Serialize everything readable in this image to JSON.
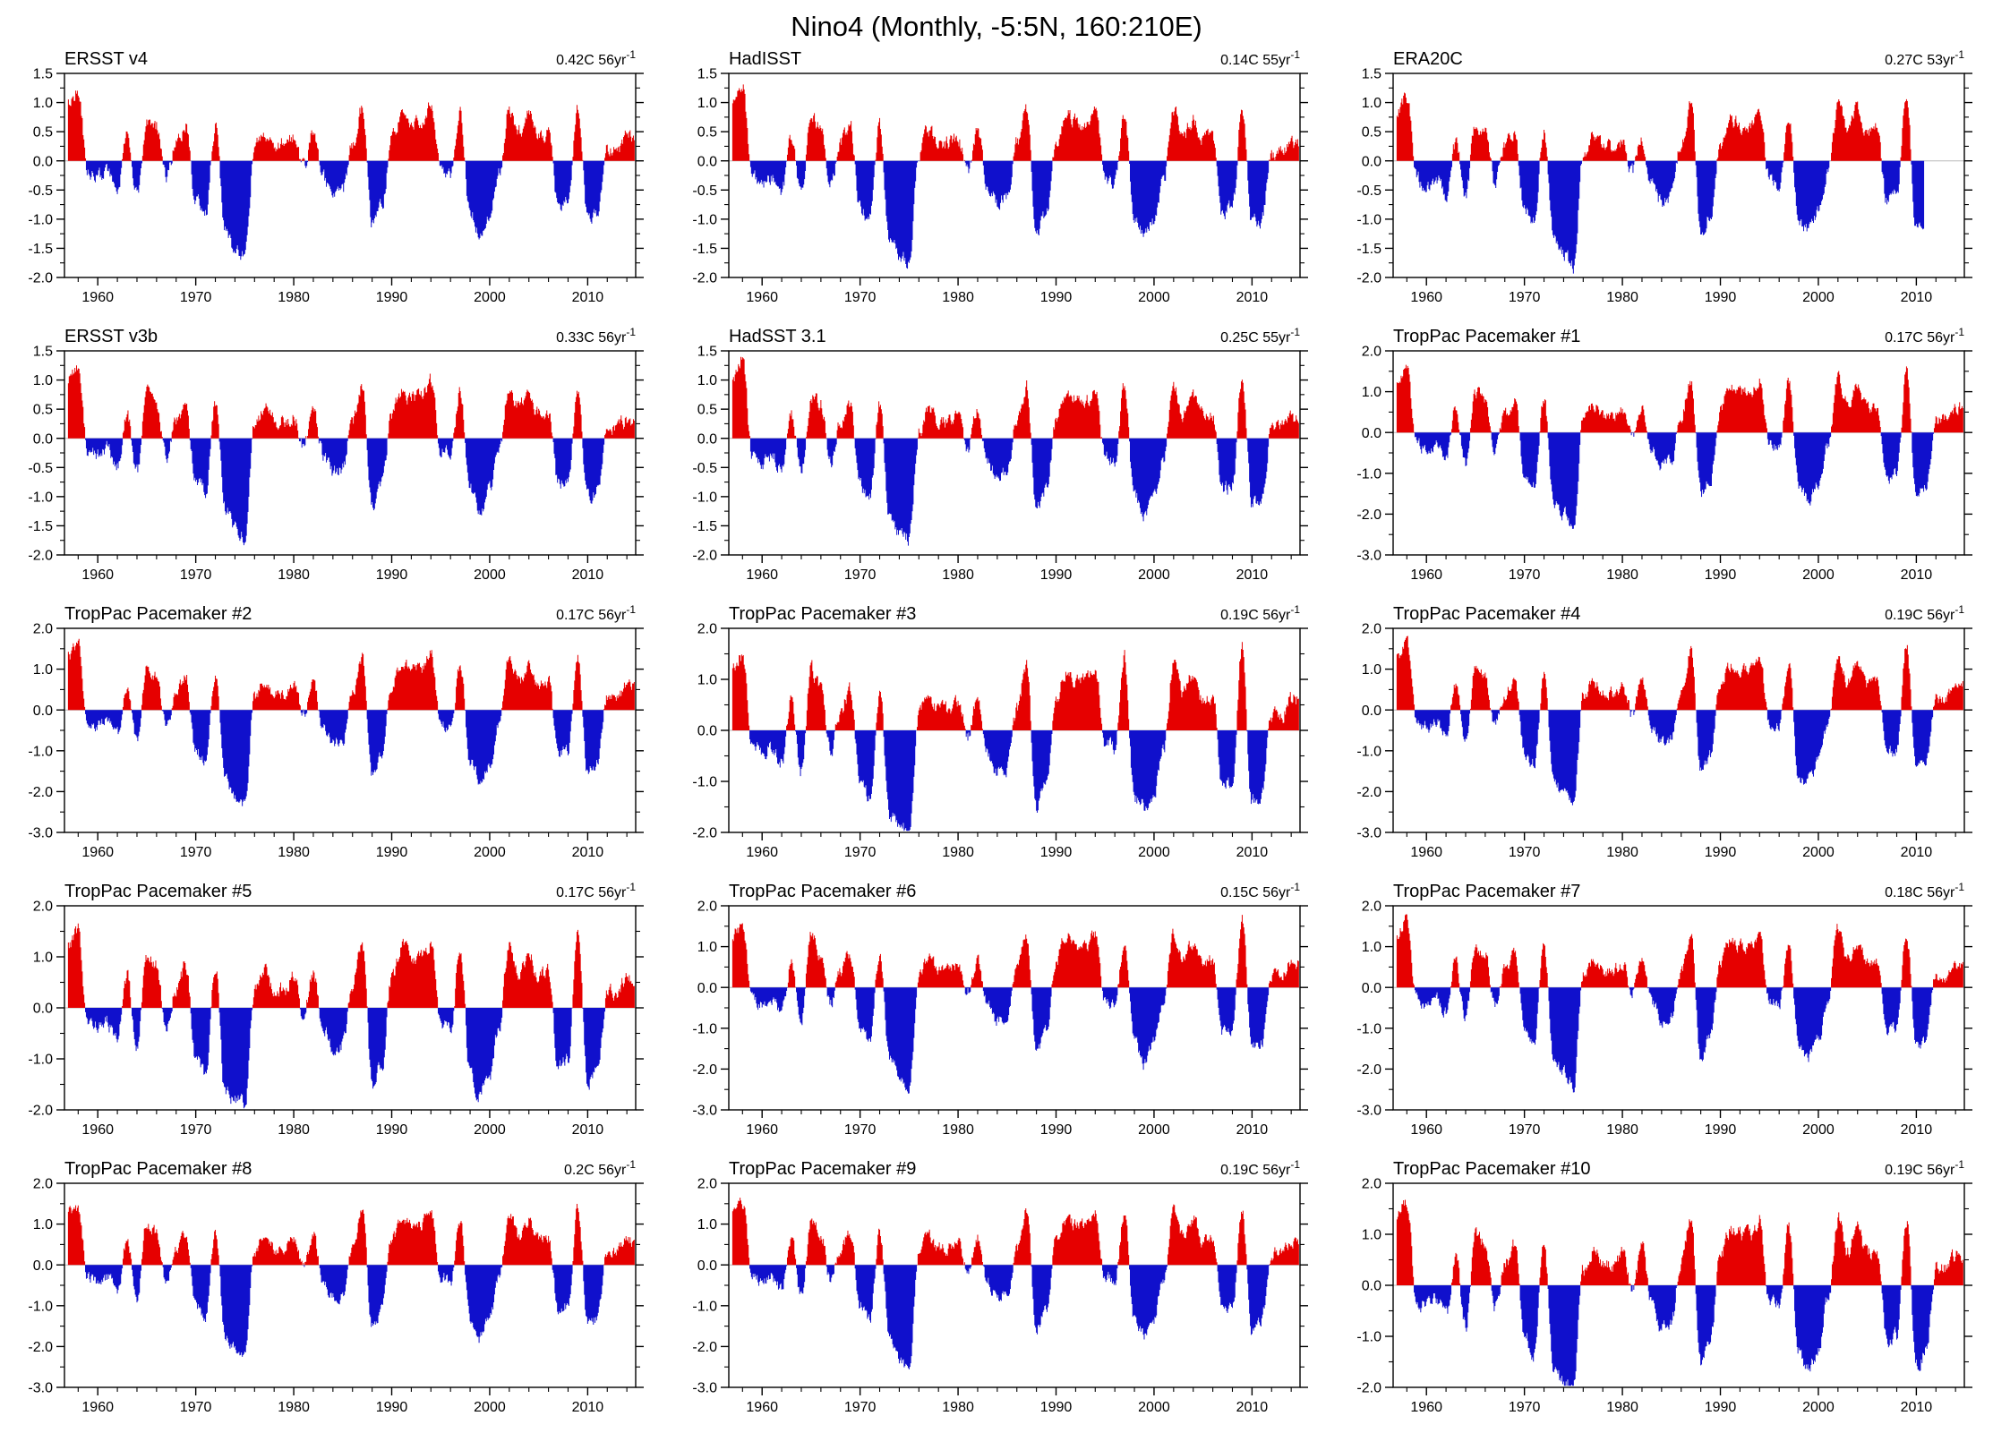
{
  "page_title": "Nino4 (Monthly, -5:5N, 160:210E)",
  "colors": {
    "positive": "#e60000",
    "negative": "#1010cc",
    "axis": "#000000",
    "zero_line": "#b8b8b8",
    "background": "#ffffff"
  },
  "axes": {
    "x_range": [
      1956.6,
      2014.9
    ],
    "x_major_ticks": [
      1960,
      1970,
      1980,
      1990,
      2000,
      2010
    ],
    "x_minor_step": 2,
    "start_year": 1957
  },
  "chart_data": {
    "type": "bar",
    "note": "Monthly SST anomaly (C) in Nino4 box; values sampled at annual resolution from each panel",
    "panels": [
      {
        "name": "ERSST v4",
        "trend": "0.42C 56yr",
        "trend_sup": "-1",
        "ylim": [
          -2.0,
          1.5
        ],
        "yticks": [
          1.5,
          1.0,
          0.5,
          0.0,
          -0.5,
          -1.0,
          -1.5,
          -2.0
        ],
        "start_year": 1957,
        "values": [
          1.0,
          1.2,
          -0.2,
          -0.3,
          -0.2,
          -0.5,
          0.4,
          -0.6,
          0.7,
          0.6,
          -0.3,
          0.3,
          0.6,
          -0.7,
          -0.9,
          0.6,
          -1.2,
          -1.5,
          -1.6,
          0.2,
          0.5,
          0.3,
          0.3,
          0.4,
          -0.1,
          0.5,
          -0.3,
          -0.6,
          -0.5,
          0.3,
          0.9,
          -1.1,
          -0.8,
          0.4,
          0.8,
          0.7,
          0.7,
          0.9,
          -0.2,
          -0.3,
          0.8,
          -0.9,
          -1.2,
          -0.9,
          -0.2,
          0.9,
          0.5,
          0.8,
          0.4,
          0.5,
          -0.8,
          -0.7,
          0.9,
          -1.0,
          -0.9,
          0.2,
          0.2,
          0.4
        ]
      },
      {
        "name": "HadISST",
        "trend": "0.14C 55yr",
        "trend_sup": "-1",
        "ylim": [
          -2.0,
          1.5
        ],
        "yticks": [
          1.5,
          1.0,
          0.5,
          0.0,
          -0.5,
          -1.0,
          -1.5,
          -2.0
        ],
        "start_year": 1957,
        "values": [
          1.0,
          1.3,
          -0.3,
          -0.4,
          -0.3,
          -0.5,
          0.4,
          -0.6,
          0.7,
          0.6,
          -0.4,
          0.3,
          0.6,
          -0.8,
          -1.0,
          0.6,
          -1.3,
          -1.6,
          -1.8,
          0.1,
          0.5,
          0.3,
          0.3,
          0.4,
          -0.2,
          0.5,
          -0.4,
          -0.7,
          -0.6,
          0.3,
          0.9,
          -1.2,
          -0.9,
          0.3,
          0.8,
          0.7,
          0.6,
          0.9,
          -0.3,
          -0.4,
          0.8,
          -1.0,
          -1.3,
          -1.0,
          -0.3,
          0.9,
          0.4,
          0.7,
          0.4,
          0.4,
          -0.9,
          -0.8,
          0.9,
          -1.1,
          -1.0,
          0.1,
          0.2,
          0.3
        ]
      },
      {
        "name": "ERA20C",
        "trend": "0.27C 53yr",
        "trend_sup": "-1",
        "ylim": [
          -2.0,
          1.5
        ],
        "yticks": [
          1.5,
          1.0,
          0.5,
          0.0,
          -0.5,
          -1.0,
          -1.5,
          -2.0
        ],
        "start_year": 1957,
        "values": [
          0.8,
          1.1,
          -0.3,
          -0.5,
          -0.3,
          -0.6,
          0.3,
          -0.6,
          0.6,
          0.5,
          -0.4,
          0.3,
          0.5,
          -0.8,
          -1.0,
          0.5,
          -1.3,
          -1.6,
          -1.8,
          0.1,
          0.4,
          0.3,
          0.2,
          0.3,
          -0.2,
          0.4,
          -0.4,
          -0.7,
          -0.6,
          0.3,
          1.0,
          -1.2,
          -0.9,
          0.3,
          0.7,
          0.6,
          0.6,
          0.8,
          -0.3,
          -0.4,
          0.8,
          -1.0,
          -1.2,
          -0.9,
          -0.2,
          0.9,
          0.5,
          0.9,
          0.5,
          0.6,
          -0.7,
          -0.6,
          1.1,
          -1.2
        ]
      },
      {
        "name": "ERSST v3b",
        "trend": "0.33C 56yr",
        "trend_sup": "-1",
        "ylim": [
          -2.0,
          1.5
        ],
        "yticks": [
          1.5,
          1.0,
          0.5,
          0.0,
          -0.5,
          -1.0,
          -1.5,
          -2.0
        ],
        "start_year": 1957,
        "values": [
          1.0,
          1.2,
          -0.2,
          -0.3,
          -0.2,
          -0.5,
          0.4,
          -0.6,
          0.8,
          0.6,
          -0.3,
          0.3,
          0.6,
          -0.7,
          -0.9,
          0.6,
          -1.2,
          -1.5,
          -1.7,
          0.2,
          0.5,
          0.3,
          0.3,
          0.4,
          -0.1,
          0.5,
          -0.3,
          -0.6,
          -0.5,
          0.3,
          0.9,
          -1.1,
          -0.8,
          0.4,
          0.8,
          0.7,
          0.7,
          1.0,
          -0.2,
          -0.3,
          0.8,
          -0.9,
          -1.2,
          -0.9,
          -0.2,
          0.9,
          0.5,
          0.8,
          0.4,
          0.5,
          -0.8,
          -0.7,
          0.9,
          -1.0,
          -0.9,
          0.2,
          0.2,
          0.3
        ]
      },
      {
        "name": "HadSST 3.1",
        "trend": "0.25C 55yr",
        "trend_sup": "-1",
        "ylim": [
          -2.0,
          1.5
        ],
        "yticks": [
          1.5,
          1.0,
          0.5,
          0.0,
          -0.5,
          -1.0,
          -1.5,
          -2.0
        ],
        "start_year": 1957,
        "values": [
          1.0,
          1.4,
          -0.3,
          -0.4,
          -0.3,
          -0.5,
          0.4,
          -0.6,
          0.7,
          0.6,
          -0.4,
          0.3,
          0.6,
          -0.8,
          -1.0,
          0.6,
          -1.3,
          -1.6,
          -1.7,
          0.1,
          0.5,
          0.3,
          0.3,
          0.4,
          -0.2,
          0.5,
          -0.4,
          -0.7,
          -0.6,
          0.3,
          0.9,
          -1.2,
          -0.9,
          0.3,
          0.8,
          0.7,
          0.6,
          0.9,
          -0.3,
          -0.4,
          0.9,
          -1.0,
          -1.3,
          -1.0,
          -0.3,
          0.9,
          0.4,
          0.7,
          0.4,
          0.4,
          -0.9,
          -0.8,
          1.0,
          -1.1,
          -1.0,
          0.2,
          0.2,
          0.3
        ]
      },
      {
        "name": "TropPac Pacemaker #1",
        "trend": "0.17C 56yr",
        "trend_sup": "-1",
        "ylim": [
          -3.0,
          2.0
        ],
        "yticks": [
          2.0,
          1.0,
          0.0,
          -1.0,
          -2.0,
          -3.0
        ],
        "start_year": 1957,
        "values": [
          1.3,
          1.5,
          -0.3,
          -0.4,
          -0.3,
          -0.6,
          0.6,
          -0.8,
          1.0,
          0.8,
          -0.4,
          0.4,
          0.8,
          -1.0,
          -1.3,
          0.8,
          -1.7,
          -2.0,
          -2.4,
          0.3,
          0.7,
          0.4,
          0.4,
          0.6,
          -0.1,
          0.7,
          -0.4,
          -0.8,
          -0.7,
          0.4,
          1.3,
          -1.5,
          -1.1,
          0.6,
          1.1,
          1.0,
          1.0,
          1.3,
          -0.3,
          -0.4,
          1.2,
          -1.3,
          -1.7,
          -1.3,
          -0.3,
          1.3,
          0.7,
          1.1,
          0.6,
          0.7,
          -1.1,
          -1.0,
          1.5,
          -1.6,
          -1.3,
          0.3,
          0.3,
          0.6
        ]
      },
      {
        "name": "TropPac Pacemaker #2",
        "trend": "0.17C 56yr",
        "trend_sup": "-1",
        "ylim": [
          -3.0,
          2.0
        ],
        "yticks": [
          2.0,
          1.0,
          0.0,
          -1.0,
          -2.0,
          -3.0
        ],
        "start_year": 1957,
        "values": [
          1.3,
          1.6,
          -0.3,
          -0.4,
          -0.3,
          -0.6,
          0.6,
          -0.8,
          1.0,
          0.8,
          -0.4,
          0.4,
          0.8,
          -1.0,
          -1.3,
          0.8,
          -1.7,
          -2.1,
          -2.3,
          0.3,
          0.7,
          0.4,
          0.4,
          0.6,
          -0.1,
          0.7,
          -0.4,
          -0.8,
          -0.7,
          0.4,
          1.3,
          -1.6,
          -1.1,
          0.6,
          1.1,
          1.0,
          1.0,
          1.4,
          -0.3,
          -0.4,
          1.1,
          -1.3,
          -1.7,
          -1.3,
          -0.3,
          1.3,
          0.7,
          1.1,
          0.6,
          0.7,
          -1.1,
          -1.0,
          1.3,
          -1.5,
          -1.3,
          0.3,
          0.3,
          0.6
        ]
      },
      {
        "name": "TropPac Pacemaker #3",
        "trend": "0.19C 56yr",
        "trend_sup": "-1",
        "ylim": [
          -2.0,
          2.0
        ],
        "yticks": [
          2.0,
          1.0,
          0.0,
          -1.0,
          -2.0
        ],
        "start_year": 1957,
        "values": [
          1.3,
          1.5,
          -0.3,
          -0.4,
          -0.3,
          -0.6,
          0.6,
          -0.8,
          1.2,
          0.8,
          -0.4,
          0.4,
          0.8,
          -1.0,
          -1.3,
          0.8,
          -1.7,
          -1.8,
          -2.0,
          0.3,
          0.7,
          0.4,
          0.4,
          0.6,
          -0.1,
          0.7,
          -0.4,
          -0.8,
          -0.7,
          0.4,
          1.3,
          -1.5,
          -1.1,
          0.6,
          1.1,
          1.0,
          1.0,
          1.3,
          -0.3,
          -0.4,
          1.4,
          -1.3,
          -1.5,
          -1.3,
          -0.3,
          1.3,
          0.7,
          1.1,
          0.6,
          0.7,
          -1.1,
          -1.0,
          1.6,
          -1.4,
          -1.3,
          0.3,
          0.3,
          0.6
        ]
      },
      {
        "name": "TropPac Pacemaker #4",
        "trend": "0.19C 56yr",
        "trend_sup": "-1",
        "ylim": [
          -3.0,
          2.0
        ],
        "yticks": [
          2.0,
          1.0,
          0.0,
          -1.0,
          -2.0,
          -3.0
        ],
        "start_year": 1957,
        "values": [
          1.3,
          1.7,
          -0.3,
          -0.4,
          -0.3,
          -0.6,
          0.6,
          -0.8,
          1.0,
          0.8,
          -0.4,
          0.4,
          0.8,
          -1.0,
          -1.3,
          0.8,
          -1.7,
          -2.1,
          -2.3,
          0.3,
          0.7,
          0.4,
          0.4,
          0.6,
          -0.1,
          0.7,
          -0.4,
          -0.8,
          -0.7,
          0.4,
          1.5,
          -1.5,
          -1.1,
          0.6,
          1.1,
          1.0,
          1.0,
          1.3,
          -0.3,
          -0.4,
          1.1,
          -1.8,
          -1.7,
          -1.3,
          -0.3,
          1.3,
          0.7,
          1.1,
          0.6,
          0.7,
          -1.1,
          -1.0,
          1.6,
          -1.4,
          -1.3,
          0.3,
          0.3,
          0.6
        ]
      },
      {
        "name": "TropPac Pacemaker #5",
        "trend": "0.17C 56yr",
        "trend_sup": "-1",
        "ylim": [
          -2.0,
          2.0
        ],
        "yticks": [
          2.0,
          1.0,
          0.0,
          -1.0,
          -2.0
        ],
        "start_year": 1957,
        "values": [
          1.3,
          1.5,
          -0.3,
          -0.4,
          -0.3,
          -0.6,
          0.6,
          -0.8,
          1.0,
          0.8,
          -0.4,
          0.4,
          0.8,
          -1.0,
          -1.3,
          0.8,
          -1.7,
          -1.8,
          -1.9,
          0.3,
          0.7,
          0.4,
          0.4,
          0.6,
          -0.1,
          0.7,
          -0.4,
          -0.8,
          -0.7,
          0.4,
          1.3,
          -1.5,
          -1.1,
          0.6,
          1.2,
          1.0,
          1.0,
          1.3,
          -0.3,
          -0.4,
          1.1,
          -1.3,
          -1.7,
          -1.3,
          -0.3,
          1.3,
          0.7,
          1.1,
          0.6,
          0.7,
          -1.1,
          -1.0,
          1.4,
          -1.4,
          -1.3,
          0.3,
          0.3,
          0.6
        ]
      },
      {
        "name": "TropPac Pacemaker #6",
        "trend": "0.15C 56yr",
        "trend_sup": "-1",
        "ylim": [
          -3.0,
          2.0
        ],
        "yticks": [
          2.0,
          1.0,
          0.0,
          -1.0,
          -2.0,
          -3.0
        ],
        "start_year": 1957,
        "values": [
          1.3,
          1.5,
          -0.3,
          -0.4,
          -0.3,
          -0.6,
          0.6,
          -0.8,
          1.3,
          0.8,
          -0.4,
          0.4,
          0.8,
          -1.0,
          -1.3,
          0.8,
          -1.7,
          -2.1,
          -2.5,
          0.3,
          0.7,
          0.4,
          0.4,
          0.6,
          -0.1,
          0.7,
          -0.4,
          -0.8,
          -0.7,
          0.4,
          1.3,
          -1.5,
          -1.1,
          0.6,
          1.3,
          1.0,
          1.0,
          1.3,
          -0.3,
          -0.4,
          1.1,
          -1.3,
          -1.9,
          -1.3,
          -0.3,
          1.3,
          0.7,
          1.1,
          0.6,
          0.7,
          -1.1,
          -1.0,
          1.7,
          -1.4,
          -1.3,
          0.3,
          0.3,
          0.6
        ]
      },
      {
        "name": "TropPac Pacemaker #7",
        "trend": "0.18C 56yr",
        "trend_sup": "-1",
        "ylim": [
          -3.0,
          2.0
        ],
        "yticks": [
          2.0,
          1.0,
          0.0,
          -1.0,
          -2.0,
          -3.0
        ],
        "start_year": 1957,
        "values": [
          1.3,
          1.7,
          -0.3,
          -0.4,
          -0.3,
          -0.6,
          0.6,
          -0.8,
          1.0,
          0.8,
          -0.4,
          0.4,
          0.8,
          -1.0,
          -1.3,
          1.0,
          -1.7,
          -2.1,
          -2.4,
          0.3,
          0.7,
          0.4,
          0.4,
          0.6,
          -0.1,
          0.7,
          -0.4,
          -0.8,
          -0.7,
          0.4,
          1.3,
          -1.8,
          -1.1,
          0.6,
          1.1,
          1.0,
          1.0,
          1.3,
          -0.3,
          -0.4,
          1.1,
          -1.3,
          -1.7,
          -1.3,
          -0.3,
          1.5,
          0.7,
          1.1,
          0.6,
          0.7,
          -1.1,
          -1.0,
          1.3,
          -1.4,
          -1.3,
          0.3,
          0.3,
          0.6
        ]
      },
      {
        "name": "TropPac Pacemaker #8",
        "trend": "0.2C 56yr",
        "trend_sup": "-1",
        "ylim": [
          -3.0,
          2.0
        ],
        "yticks": [
          2.0,
          1.0,
          0.0,
          -1.0,
          -2.0,
          -3.0
        ],
        "start_year": 1957,
        "values": [
          1.3,
          1.4,
          -0.3,
          -0.4,
          -0.3,
          -0.6,
          0.6,
          -0.8,
          1.0,
          0.8,
          -0.4,
          0.4,
          0.8,
          -1.0,
          -1.3,
          0.8,
          -1.7,
          -2.1,
          -2.2,
          0.3,
          0.7,
          0.4,
          0.4,
          0.6,
          -0.1,
          0.7,
          -0.4,
          -0.8,
          -0.7,
          0.4,
          1.4,
          -1.5,
          -1.1,
          0.6,
          1.1,
          1.0,
          1.0,
          1.3,
          -0.3,
          -0.4,
          1.1,
          -1.3,
          -1.8,
          -1.3,
          -0.3,
          1.3,
          0.7,
          1.1,
          0.6,
          0.7,
          -1.1,
          -1.0,
          1.4,
          -1.4,
          -1.3,
          0.3,
          0.3,
          0.6
        ]
      },
      {
        "name": "TropPac Pacemaker #9",
        "trend": "0.19C 56yr",
        "trend_sup": "-1",
        "ylim": [
          -3.0,
          2.0
        ],
        "yticks": [
          2.0,
          1.0,
          0.0,
          -1.0,
          -2.0,
          -3.0
        ],
        "start_year": 1957,
        "values": [
          1.3,
          1.5,
          -0.3,
          -0.4,
          -0.3,
          -0.6,
          0.6,
          -0.8,
          1.0,
          0.8,
          -0.4,
          0.4,
          0.8,
          -1.0,
          -1.3,
          0.8,
          -1.7,
          -2.3,
          -2.6,
          0.3,
          0.7,
          0.4,
          0.4,
          0.6,
          -0.1,
          0.7,
          -0.4,
          -0.8,
          -0.7,
          0.4,
          1.3,
          -1.5,
          -1.1,
          0.6,
          1.1,
          1.0,
          1.0,
          1.3,
          -0.3,
          -0.4,
          1.3,
          -1.3,
          -1.7,
          -1.3,
          -0.3,
          1.3,
          0.7,
          1.1,
          0.6,
          0.7,
          -1.1,
          -1.0,
          1.3,
          -1.7,
          -1.3,
          0.3,
          0.3,
          0.6
        ]
      },
      {
        "name": "TropPac Pacemaker #10",
        "trend": "0.19C 56yr",
        "trend_sup": "-1",
        "ylim": [
          -2.0,
          2.0
        ],
        "yticks": [
          2.0,
          1.0,
          0.0,
          -1.0,
          -2.0
        ],
        "start_year": 1957,
        "values": [
          1.3,
          1.7,
          -0.3,
          -0.4,
          -0.3,
          -0.6,
          0.6,
          -0.8,
          1.0,
          0.8,
          -0.4,
          0.4,
          0.8,
          -1.0,
          -1.3,
          0.8,
          -1.7,
          -1.9,
          -2.0,
          0.3,
          0.7,
          0.4,
          0.4,
          0.6,
          -0.1,
          0.7,
          -0.4,
          -0.8,
          -0.7,
          0.4,
          1.3,
          -1.5,
          -1.1,
          0.6,
          1.1,
          1.0,
          1.0,
          1.3,
          -0.3,
          -0.4,
          1.1,
          -1.3,
          -1.7,
          -1.3,
          -0.3,
          1.3,
          0.7,
          1.1,
          0.6,
          0.7,
          -1.1,
          -1.0,
          1.3,
          -1.6,
          -1.3,
          0.3,
          0.3,
          0.6
        ]
      }
    ]
  }
}
